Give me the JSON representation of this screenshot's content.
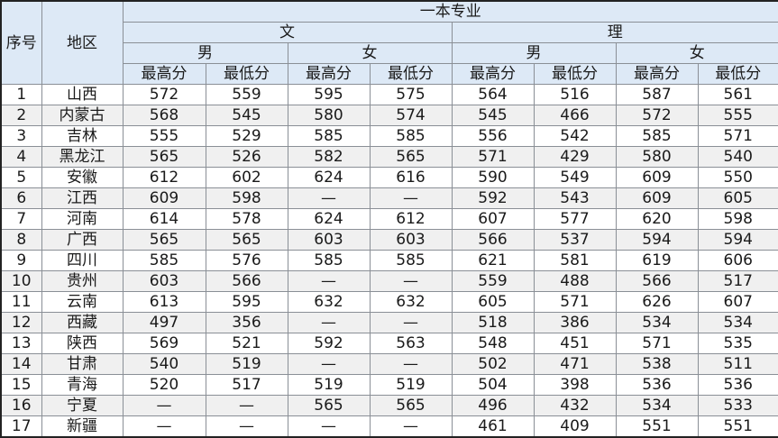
{
  "header": {
    "col_index": "序号",
    "col_region": "地区",
    "group_title": "一本专业",
    "streams": [
      "文",
      "理"
    ],
    "genders": [
      "男",
      "女",
      "男",
      "女"
    ],
    "metrics": [
      "最高分",
      "最低分",
      "最高分",
      "最低分",
      "最高分",
      "最低分",
      "最高分",
      "最低分"
    ]
  },
  "colors": {
    "header_bg": "#dde9f6",
    "alt_row_bg": "#f0f0f0",
    "border": "#8a8f96"
  },
  "rows": [
    {
      "no": "1",
      "region": "山西",
      "scores": [
        "572",
        "559",
        "595",
        "575",
        "564",
        "516",
        "587",
        "561"
      ]
    },
    {
      "no": "2",
      "region": "内蒙古",
      "scores": [
        "568",
        "545",
        "580",
        "574",
        "545",
        "466",
        "572",
        "555"
      ]
    },
    {
      "no": "3",
      "region": "吉林",
      "scores": [
        "555",
        "529",
        "585",
        "585",
        "556",
        "542",
        "585",
        "571"
      ]
    },
    {
      "no": "4",
      "region": "黑龙江",
      "scores": [
        "565",
        "526",
        "582",
        "565",
        "571",
        "429",
        "580",
        "540"
      ]
    },
    {
      "no": "5",
      "region": "安徽",
      "scores": [
        "612",
        "602",
        "624",
        "616",
        "590",
        "549",
        "609",
        "550"
      ]
    },
    {
      "no": "6",
      "region": "江西",
      "scores": [
        "609",
        "598",
        "—",
        "—",
        "592",
        "543",
        "609",
        "605"
      ]
    },
    {
      "no": "7",
      "region": "河南",
      "scores": [
        "614",
        "578",
        "624",
        "612",
        "607",
        "577",
        "620",
        "598"
      ]
    },
    {
      "no": "8",
      "region": "广西",
      "scores": [
        "565",
        "565",
        "603",
        "603",
        "566",
        "537",
        "594",
        "594"
      ]
    },
    {
      "no": "9",
      "region": "四川",
      "scores": [
        "585",
        "576",
        "585",
        "585",
        "621",
        "581",
        "619",
        "606"
      ]
    },
    {
      "no": "10",
      "region": "贵州",
      "scores": [
        "603",
        "566",
        "—",
        "—",
        "559",
        "488",
        "566",
        "517"
      ]
    },
    {
      "no": "11",
      "region": "云南",
      "scores": [
        "613",
        "595",
        "632",
        "632",
        "605",
        "571",
        "626",
        "607"
      ]
    },
    {
      "no": "12",
      "region": "西藏",
      "scores": [
        "497",
        "356",
        "—",
        "—",
        "518",
        "386",
        "534",
        "534"
      ]
    },
    {
      "no": "13",
      "region": "陕西",
      "scores": [
        "569",
        "521",
        "592",
        "563",
        "548",
        "451",
        "571",
        "535"
      ]
    },
    {
      "no": "14",
      "region": "甘肃",
      "scores": [
        "540",
        "519",
        "—",
        "—",
        "502",
        "471",
        "538",
        "511"
      ]
    },
    {
      "no": "15",
      "region": "青海",
      "scores": [
        "520",
        "517",
        "519",
        "519",
        "504",
        "398",
        "536",
        "536"
      ]
    },
    {
      "no": "16",
      "region": "宁夏",
      "scores": [
        "—",
        "—",
        "565",
        "565",
        "496",
        "432",
        "534",
        "533"
      ]
    },
    {
      "no": "17",
      "region": "新疆",
      "scores": [
        "—",
        "—",
        "—",
        "—",
        "461",
        "409",
        "551",
        "551"
      ]
    }
  ]
}
